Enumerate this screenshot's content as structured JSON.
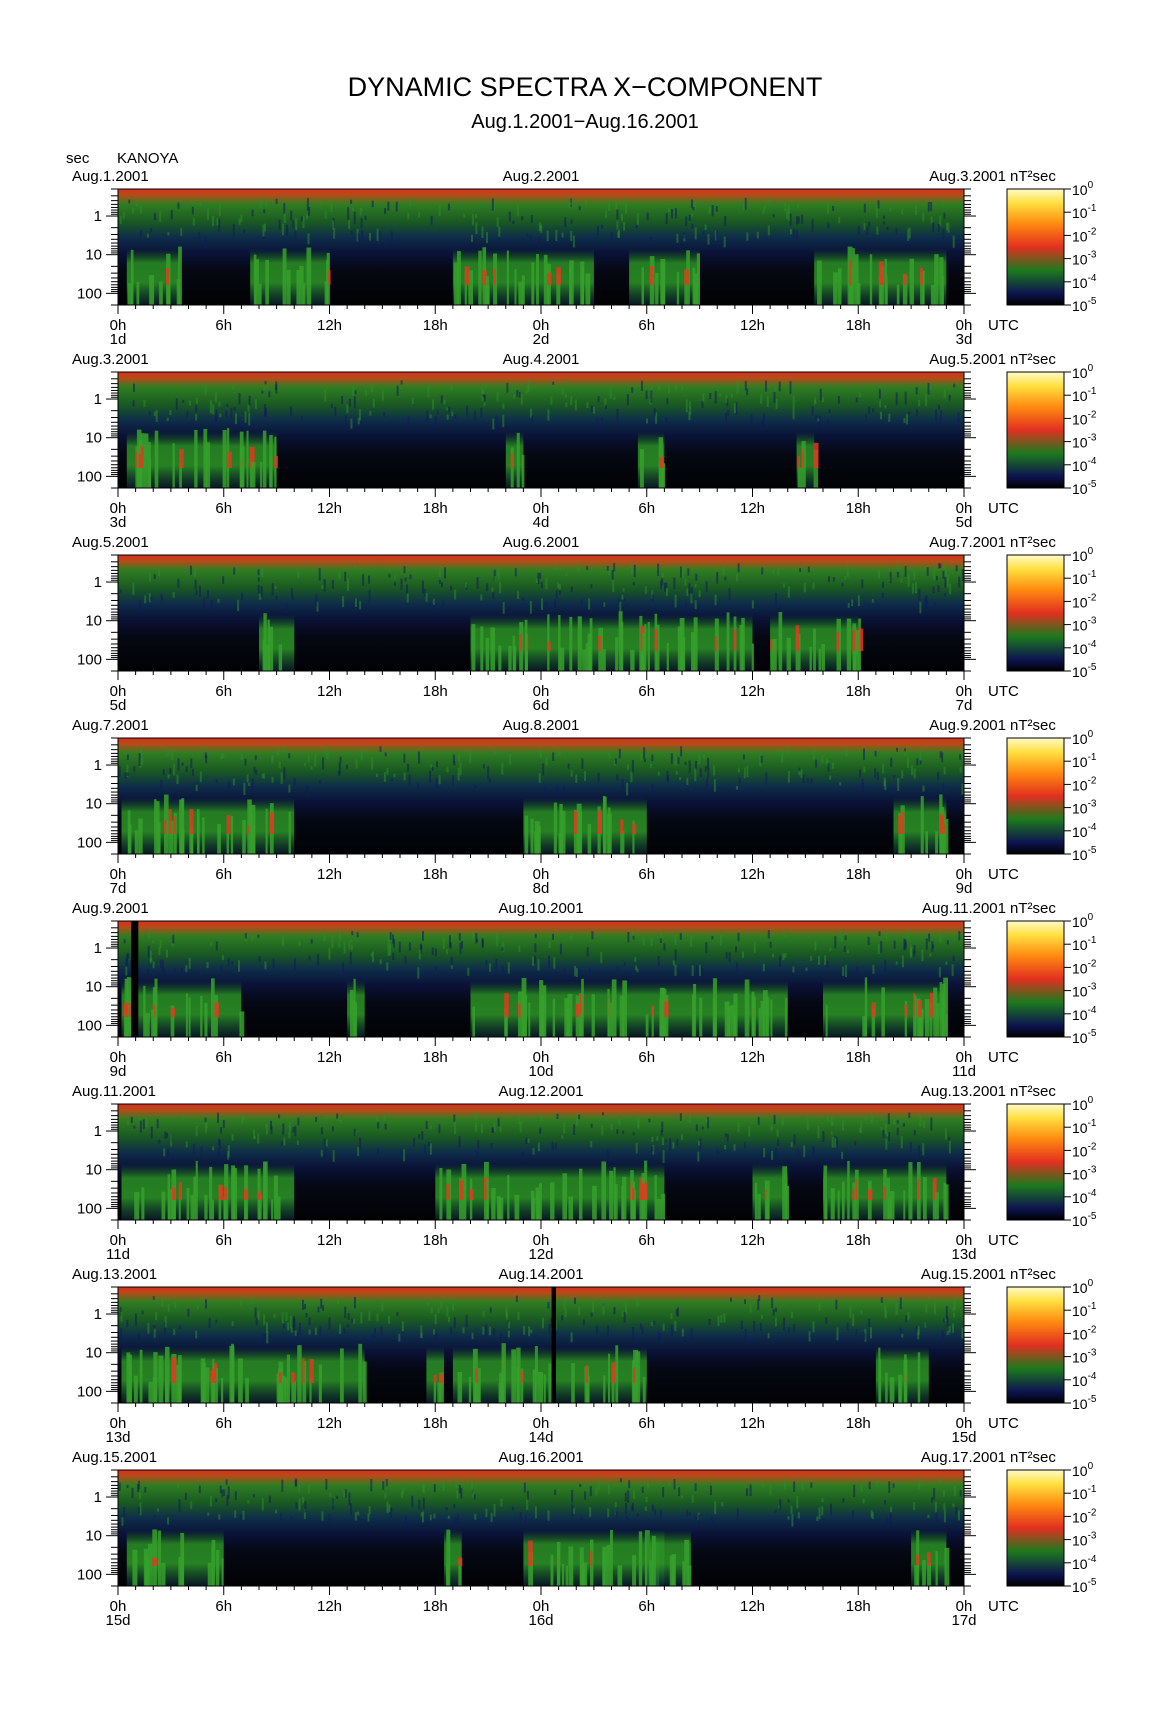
{
  "header": {
    "title": "DYNAMIC SPECTRA X−COMPONENT",
    "subtitle": "Aug.1.2001−Aug.16.2001",
    "yunit": "sec",
    "station": "KANOYA"
  },
  "labels": {
    "xunit": "UTC",
    "cunit": "nT²sec"
  },
  "chart_data": {
    "type": "heatmap",
    "title": "DYNAMIC SPECTRA X−COMPONENT",
    "subtitle": "Aug.1.2001−Aug.16.2001",
    "station": "KANOYA",
    "ylabel": "sec",
    "xlabel": "UTC",
    "colorbar_label": "nT²sec",
    "y_scale": "log",
    "y_range_sec": [
      0.2,
      200
    ],
    "y_ticks": [
      "1",
      "10",
      "100"
    ],
    "y_tick_values": [
      1,
      10,
      100
    ],
    "x_ticks": [
      "0h",
      "6h",
      "12h",
      "18h",
      "0h",
      "6h",
      "12h",
      "18h",
      "0h"
    ],
    "x_range_hours": [
      0,
      48
    ],
    "color_scale": [
      "10^-5",
      "10^-4",
      "10^-3",
      "10^-2",
      "10^-1",
      "10^0"
    ],
    "color_scale_exponents": [
      "-5",
      "-4",
      "-3",
      "-2",
      "-1",
      "0"
    ],
    "color_scale_stops": [
      "#000000",
      "#0d1450",
      "#1d7a1d",
      "#e23020",
      "#ff8a10",
      "#ffe040",
      "#fffbc8"
    ],
    "panels": [
      {
        "date_left": "Aug.1.2001",
        "date_mid": "Aug.2.2001",
        "date_right": "Aug.3.2001",
        "day_left": "1d",
        "day_mid": "2d",
        "day_right": "3d",
        "gaps": [],
        "bursts": [
          [
            0.5,
            3.5
          ],
          [
            7.5,
            12
          ],
          [
            19,
            27
          ],
          [
            29,
            33
          ],
          [
            39.5,
            47
          ]
        ]
      },
      {
        "date_left": "Aug.3.2001",
        "date_mid": "Aug.4.2001",
        "date_right": "Aug.5.2001",
        "day_left": "3d",
        "day_mid": "4d",
        "day_right": "5d",
        "gaps": [],
        "bursts": [
          [
            0.5,
            9
          ],
          [
            22,
            23
          ],
          [
            29.5,
            31
          ],
          [
            38.5,
            39.5
          ]
        ]
      },
      {
        "date_left": "Aug.5.2001",
        "date_mid": "Aug.6.2001",
        "date_right": "Aug.7.2001",
        "day_left": "5d",
        "day_mid": "6d",
        "day_right": "7d",
        "gaps": [],
        "bursts": [
          [
            8,
            10
          ],
          [
            20,
            36
          ],
          [
            37,
            42
          ]
        ]
      },
      {
        "date_left": "Aug.7.2001",
        "date_mid": "Aug.8.2001",
        "date_right": "Aug.9.2001",
        "day_left": "7d",
        "day_mid": "8d",
        "day_right": "9d",
        "gaps": [],
        "bursts": [
          [
            0.2,
            10
          ],
          [
            23,
            30
          ],
          [
            44,
            47
          ]
        ]
      },
      {
        "date_left": "Aug.9.2001",
        "date_mid": "Aug.10.2001",
        "date_right": "Aug.11.2001",
        "day_left": "9d",
        "day_mid": "10d",
        "day_right": "11d",
        "gaps": [
          [
            0.75,
            1.15
          ]
        ],
        "bursts": [
          [
            0.2,
            7
          ],
          [
            13,
            14
          ],
          [
            20,
            38
          ],
          [
            40,
            47
          ]
        ]
      },
      {
        "date_left": "Aug.11.2001",
        "date_mid": "Aug.12.2001",
        "date_right": "Aug.13.2001",
        "day_left": "11d",
        "day_mid": "12d",
        "day_right": "13d",
        "gaps": [],
        "bursts": [
          [
            0.2,
            10
          ],
          [
            18,
            31
          ],
          [
            36,
            38
          ],
          [
            40,
            47
          ]
        ]
      },
      {
        "date_left": "Aug.13.2001",
        "date_mid": "Aug.14.2001",
        "date_right": "Aug.15.2001",
        "day_left": "13d",
        "day_mid": "14d",
        "day_right": "15d",
        "gaps": [
          [
            24.6,
            24.85
          ]
        ],
        "bursts": [
          [
            0.2,
            14
          ],
          [
            17.5,
            18.5
          ],
          [
            19,
            30
          ],
          [
            43,
            46
          ]
        ]
      },
      {
        "date_left": "Aug.15.2001",
        "date_mid": "Aug.16.2001",
        "date_right": "Aug.17.2001",
        "day_left": "15d",
        "day_mid": "16d",
        "day_right": "17d",
        "gaps": [],
        "bursts": [
          [
            0.5,
            6
          ],
          [
            18.5,
            19.5
          ],
          [
            23,
            31
          ],
          [
            30,
            32.5
          ],
          [
            45,
            47
          ]
        ]
      }
    ]
  }
}
